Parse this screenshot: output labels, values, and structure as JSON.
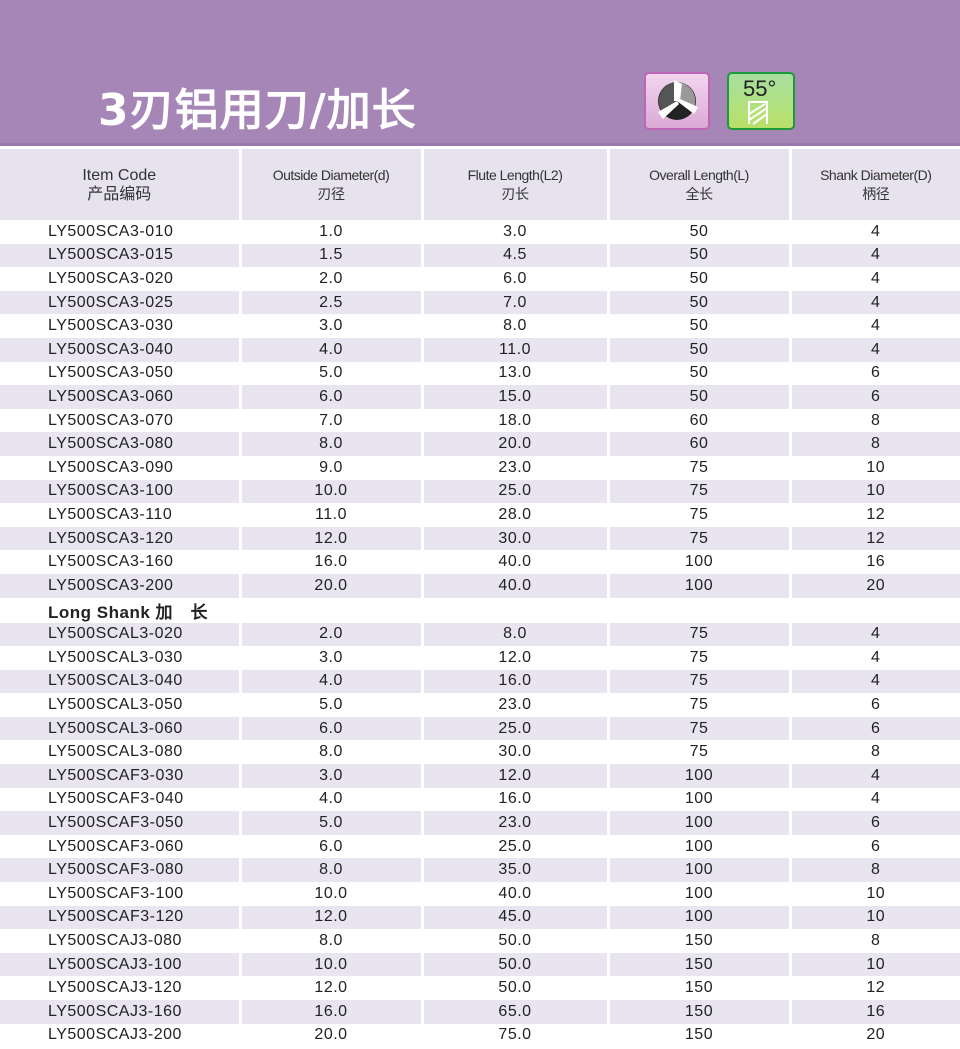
{
  "title": "3刃铝用刀/加长",
  "badges": {
    "flute_icon": "three-flute-icon",
    "helix_angle": "55°"
  },
  "colors": {
    "banner": "#a586b6",
    "header": "#e6e2ee",
    "stripe": "#e8e4f0"
  },
  "columns": [
    {
      "en": "Item Code",
      "zh": "产品编码"
    },
    {
      "en": "Outside Diameter(d)",
      "zh": "刃径"
    },
    {
      "en": "Flute Length(L2)",
      "zh": "刃长"
    },
    {
      "en": "Overall Length(L)",
      "zh": "全长"
    },
    {
      "en": "Shank Diameter(D)",
      "zh": "柄径"
    }
  ],
  "rows": [
    [
      "LY500SCA3-010",
      "1.0",
      "3.0",
      "50",
      "4"
    ],
    [
      "LY500SCA3-015",
      "1.5",
      "4.5",
      "50",
      "4"
    ],
    [
      "LY500SCA3-020",
      "2.0",
      "6.0",
      "50",
      "4"
    ],
    [
      "LY500SCA3-025",
      "2.5",
      "7.0",
      "50",
      "4"
    ],
    [
      "LY500SCA3-030",
      "3.0",
      "8.0",
      "50",
      "4"
    ],
    [
      "LY500SCA3-040",
      "4.0",
      "11.0",
      "50",
      "4"
    ],
    [
      "LY500SCA3-050",
      "5.0",
      "13.0",
      "50",
      "6"
    ],
    [
      "LY500SCA3-060",
      "6.0",
      "15.0",
      "50",
      "6"
    ],
    [
      "LY500SCA3-070",
      "7.0",
      "18.0",
      "60",
      "8"
    ],
    [
      "LY500SCA3-080",
      "8.0",
      "20.0",
      "60",
      "8"
    ],
    [
      "LY500SCA3-090",
      "9.0",
      "23.0",
      "75",
      "10"
    ],
    [
      "LY500SCA3-100",
      "10.0",
      "25.0",
      "75",
      "10"
    ],
    [
      "LY500SCA3-110",
      "11.0",
      "28.0",
      "75",
      "12"
    ],
    [
      "LY500SCA3-120",
      "12.0",
      "30.0",
      "75",
      "12"
    ],
    [
      "LY500SCA3-160",
      "16.0",
      "40.0",
      "100",
      "16"
    ],
    [
      "LY500SCA3-200",
      "20.0",
      "40.0",
      "100",
      "20"
    ]
  ],
  "section_label": "Long Shank 加　长",
  "long_rows": [
    [
      "LY500SCAL3-020",
      "2.0",
      "8.0",
      "75",
      "4"
    ],
    [
      "LY500SCAL3-030",
      "3.0",
      "12.0",
      "75",
      "4"
    ],
    [
      "LY500SCAL3-040",
      "4.0",
      "16.0",
      "75",
      "4"
    ],
    [
      "LY500SCAL3-050",
      "5.0",
      "23.0",
      "75",
      "6"
    ],
    [
      "LY500SCAL3-060",
      "6.0",
      "25.0",
      "75",
      "6"
    ],
    [
      "LY500SCAL3-080",
      "8.0",
      "30.0",
      "75",
      "8"
    ],
    [
      "LY500SCAF3-030",
      "3.0",
      "12.0",
      "100",
      "4"
    ],
    [
      "LY500SCAF3-040",
      "4.0",
      "16.0",
      "100",
      "4"
    ],
    [
      "LY500SCAF3-050",
      "5.0",
      "23.0",
      "100",
      "6"
    ],
    [
      "LY500SCAF3-060",
      "6.0",
      "25.0",
      "100",
      "6"
    ],
    [
      "LY500SCAF3-080",
      "8.0",
      "35.0",
      "100",
      "8"
    ],
    [
      "LY500SCAF3-100",
      "10.0",
      "40.0",
      "100",
      "10"
    ],
    [
      "LY500SCAF3-120",
      "12.0",
      "45.0",
      "100",
      "10"
    ],
    [
      "LY500SCAJ3-080",
      "8.0",
      "50.0",
      "150",
      "8"
    ],
    [
      "LY500SCAJ3-100",
      "10.0",
      "50.0",
      "150",
      "10"
    ],
    [
      "LY500SCAJ3-120",
      "12.0",
      "50.0",
      "150",
      "12"
    ],
    [
      "LY500SCAJ3-160",
      "16.0",
      "65.0",
      "150",
      "16"
    ],
    [
      "LY500SCAJ3-200",
      "20.0",
      "75.0",
      "150",
      "20"
    ]
  ]
}
